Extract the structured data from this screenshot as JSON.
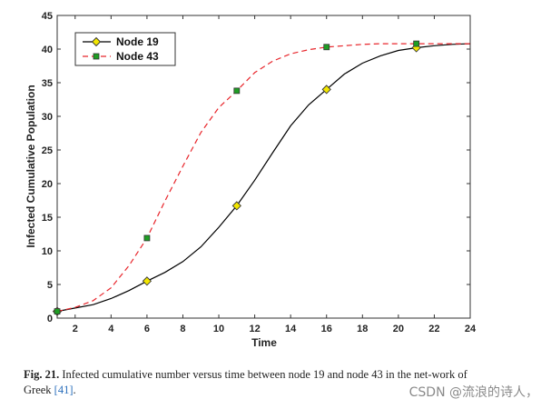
{
  "chart_data": {
    "type": "line",
    "title": "",
    "xlabel": "Time",
    "ylabel": "Infected Cumulative Population",
    "xlim": [
      1,
      24
    ],
    "ylim": [
      0,
      45
    ],
    "xticks": [
      2,
      4,
      6,
      8,
      10,
      12,
      14,
      16,
      18,
      20,
      22,
      24
    ],
    "yticks": [
      0,
      5,
      10,
      15,
      20,
      25,
      30,
      35,
      40,
      45
    ],
    "grid": false,
    "legend_position": "top-left",
    "series": [
      {
        "name": "Node 19",
        "color": "#000000",
        "line_style": "solid",
        "marker": "diamond",
        "marker_color": "#f2e600",
        "x": [
          1,
          2,
          3,
          4,
          5,
          6,
          7,
          8,
          9,
          10,
          11,
          12,
          13,
          14,
          15,
          16,
          17,
          18,
          19,
          20,
          21,
          22,
          23,
          24
        ],
        "y": [
          1.0,
          1.5,
          2.0,
          2.9,
          4.1,
          5.5,
          6.8,
          8.4,
          10.6,
          13.5,
          16.7,
          20.5,
          24.6,
          28.6,
          31.7,
          34.0,
          36.3,
          37.9,
          39.0,
          39.8,
          40.2,
          40.5,
          40.7,
          40.8
        ],
        "marker_x": [
          1,
          6,
          11,
          16,
          21
        ],
        "marker_y": [
          1.0,
          5.5,
          16.7,
          34.0,
          40.2
        ]
      },
      {
        "name": "Node 43",
        "color": "#e8262c",
        "line_style": "dashed",
        "marker": "square",
        "marker_color": "#1f9e24",
        "x": [
          1,
          2,
          3,
          4,
          5,
          6,
          7,
          8,
          9,
          10,
          11,
          12,
          13,
          14,
          15,
          16,
          17,
          18,
          19,
          20,
          21,
          22,
          23,
          24
        ],
        "y": [
          1.0,
          1.6,
          2.6,
          4.5,
          7.8,
          11.9,
          17.4,
          22.6,
          27.6,
          31.3,
          33.8,
          36.5,
          38.2,
          39.3,
          39.9,
          40.3,
          40.5,
          40.7,
          40.8,
          40.8,
          40.8,
          40.8,
          40.8,
          40.8
        ],
        "marker_x": [
          1,
          6,
          11,
          16,
          21
        ],
        "marker_y": [
          1.0,
          11.9,
          33.8,
          40.3,
          40.8
        ]
      }
    ]
  },
  "caption": {
    "label": "Fig. 21.",
    "text": "Infected cumulative number versus time between node 19 and node 43 in the net-work of Greek",
    "ref_text": "[41]",
    "end_punct": "."
  },
  "watermark": "CSDN @流浪的诗人，"
}
